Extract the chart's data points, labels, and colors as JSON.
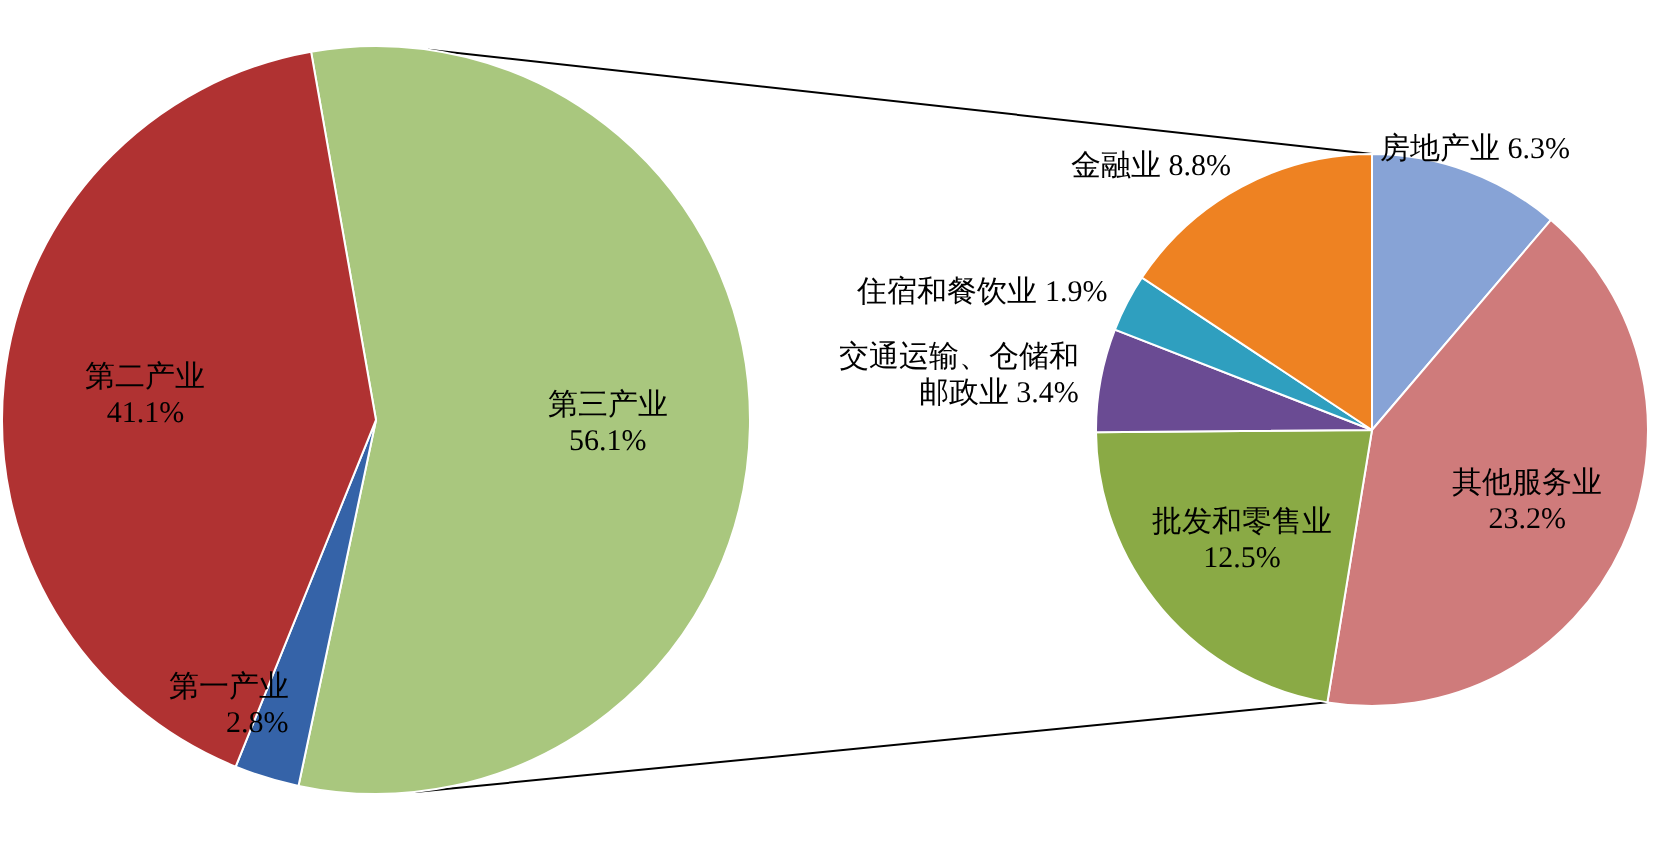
{
  "chart_data": [
    {
      "type": "pie",
      "categories": [
        "第三产业",
        "第一产业",
        "第二产业"
      ],
      "values": [
        56.1,
        2.8,
        41.1
      ],
      "colors": [
        "#a9c77e",
        "#3563a8",
        "#b03232"
      ],
      "value_labels": [
        "56.1%",
        "2.8%",
        "41.1%"
      ]
    },
    {
      "type": "pie",
      "categories": [
        "房地产业",
        "其他服务业",
        "批发和零售业",
        "交通运输、仓储和邮政业",
        "住宿和餐饮业",
        "金融业"
      ],
      "values": [
        6.3,
        23.2,
        12.5,
        3.4,
        1.9,
        8.8
      ],
      "colors": [
        "#87a3d6",
        "#cf7b7b",
        "#8aaa45",
        "#6a4b93",
        "#2f9fbf",
        "#ee8222"
      ],
      "value_labels": [
        "6.3%",
        "23.2%",
        "12.5%",
        "3.4%",
        "1.9%",
        "8.8%"
      ]
    }
  ]
}
